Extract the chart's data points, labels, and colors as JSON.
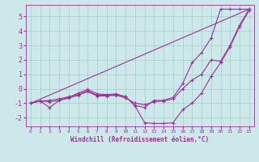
{
  "xlabel": "Windchill (Refroidissement éolien,°C)",
  "bg_color": "#cce8e8",
  "line_color": "#993399",
  "grid_color": "#aacccc",
  "xlim": [
    -0.5,
    23.5
  ],
  "ylim": [
    -2.6,
    5.8
  ],
  "yticks": [
    -2,
    -1,
    0,
    1,
    2,
    3,
    4,
    5
  ],
  "xticks": [
    0,
    1,
    2,
    3,
    4,
    5,
    6,
    7,
    8,
    9,
    10,
    11,
    12,
    13,
    14,
    15,
    16,
    17,
    18,
    19,
    20,
    21,
    22,
    23
  ],
  "series": [
    {
      "x": [
        0,
        1,
        2,
        3,
        4,
        5,
        6,
        7,
        8,
        9,
        10,
        11,
        12,
        13,
        14,
        15,
        16,
        17,
        18,
        19,
        20,
        21,
        22,
        23
      ],
      "y": [
        -1.0,
        -0.85,
        -1.3,
        -0.8,
        -0.6,
        -0.3,
        -0.05,
        -0.35,
        -0.4,
        -0.35,
        -0.55,
        -1.15,
        -1.3,
        -0.8,
        -0.8,
        -0.6,
        0.35,
        1.8,
        2.5,
        3.5,
        5.5,
        5.5,
        5.5,
        5.5
      ]
    },
    {
      "x": [
        0,
        1,
        2,
        3,
        4,
        5,
        6,
        7,
        8,
        9,
        10,
        11,
        12,
        13,
        14,
        15,
        16,
        17,
        18,
        19,
        20,
        21,
        22,
        23
      ],
      "y": [
        -1.0,
        -0.85,
        -0.9,
        -0.8,
        -0.65,
        -0.45,
        -0.2,
        -0.5,
        -0.5,
        -0.45,
        -0.65,
        -1.0,
        -1.1,
        -0.9,
        -0.85,
        -0.7,
        0.0,
        0.6,
        1.0,
        2.0,
        1.9,
        3.0,
        4.4,
        5.5
      ]
    },
    {
      "x": [
        0,
        1,
        2,
        3,
        4,
        5,
        6,
        7,
        8,
        9,
        10,
        11,
        12,
        13,
        14,
        15,
        16,
        17,
        18,
        19,
        20,
        21,
        22,
        23
      ],
      "y": [
        -1.0,
        -0.85,
        -0.8,
        -0.7,
        -0.55,
        -0.4,
        -0.15,
        -0.45,
        -0.45,
        -0.4,
        -0.55,
        -1.2,
        -2.35,
        -2.4,
        -2.4,
        -2.35,
        -1.45,
        -1.0,
        -0.3,
        0.85,
        1.8,
        2.9,
        4.3,
        5.4
      ]
    },
    {
      "x": [
        0,
        23
      ],
      "y": [
        -1.0,
        5.5
      ]
    }
  ]
}
